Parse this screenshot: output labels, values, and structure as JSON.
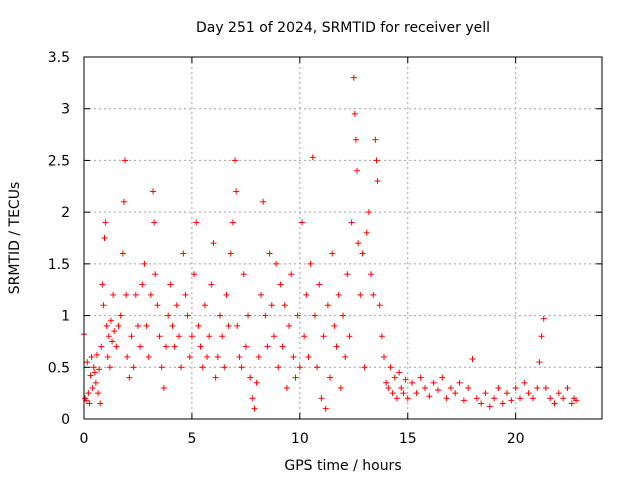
{
  "chart_data": {
    "type": "scatter",
    "title": "Day 251 of 2024, SRMTID for receiver yell",
    "xlabel": "GPS time / hours",
    "ylabel": "SRMTID / TECUs",
    "xlim": [
      0,
      24
    ],
    "ylim": [
      0,
      3.5
    ],
    "grid": true,
    "marker": "+",
    "color": "#ff0000",
    "x_ticks": [
      0,
      5,
      10,
      15,
      20
    ],
    "x_tick_labels": [
      "0",
      "5",
      "10",
      "15",
      "20"
    ],
    "y_ticks": [
      0,
      0.5,
      1,
      1.5,
      2,
      2.5,
      3,
      3.5
    ],
    "y_tick_labels": [
      "0",
      "0.5",
      "1",
      "1.5",
      "2",
      "2.5",
      "3",
      "3.5"
    ],
    "series": [
      {
        "name": "SRMTID",
        "points": [
          [
            0.0,
            0.82
          ],
          [
            0.05,
            0.2
          ],
          [
            0.1,
            0.18
          ],
          [
            0.15,
            0.55
          ],
          [
            0.2,
            0.25
          ],
          [
            0.25,
            0.15
          ],
          [
            0.3,
            0.42
          ],
          [
            0.35,
            0.6
          ],
          [
            0.4,
            0.3
          ],
          [
            0.45,
            0.5
          ],
          [
            0.5,
            0.45
          ],
          [
            0.55,
            0.35
          ],
          [
            0.6,
            0.62
          ],
          [
            0.65,
            0.25
          ],
          [
            0.7,
            0.48
          ],
          [
            0.75,
            0.15
          ],
          [
            0.8,
            0.7
          ],
          [
            0.85,
            1.3
          ],
          [
            0.9,
            1.1
          ],
          [
            0.95,
            1.75
          ],
          [
            1.0,
            1.9
          ],
          [
            1.05,
            0.9
          ],
          [
            1.1,
            0.6
          ],
          [
            1.15,
            0.8
          ],
          [
            1.2,
            0.5
          ],
          [
            1.25,
            0.95
          ],
          [
            1.3,
            0.75
          ],
          [
            1.35,
            1.2
          ],
          [
            1.4,
            0.85
          ],
          [
            1.5,
            0.7
          ],
          [
            1.6,
            0.9
          ],
          [
            1.7,
            1.0
          ],
          [
            1.8,
            1.6
          ],
          [
            1.85,
            2.1
          ],
          [
            1.9,
            2.5
          ],
          [
            1.95,
            1.2
          ],
          [
            2.0,
            0.6
          ],
          [
            2.1,
            0.4
          ],
          [
            2.2,
            0.8
          ],
          [
            2.3,
            0.5
          ],
          [
            2.4,
            1.2
          ],
          [
            2.5,
            0.9
          ],
          [
            2.6,
            0.7
          ],
          [
            2.7,
            1.3
          ],
          [
            2.8,
            1.5
          ],
          [
            2.9,
            0.9
          ],
          [
            3.0,
            0.6
          ],
          [
            3.1,
            1.2
          ],
          [
            3.2,
            2.2
          ],
          [
            3.25,
            1.9
          ],
          [
            3.3,
            1.4
          ],
          [
            3.4,
            1.1
          ],
          [
            3.5,
            0.8
          ],
          [
            3.6,
            0.5
          ],
          [
            3.7,
            0.3
          ],
          [
            3.8,
            0.7
          ],
          [
            3.9,
            1.0
          ],
          [
            4.0,
            1.3
          ],
          [
            4.1,
            0.9
          ],
          [
            4.2,
            0.7
          ],
          [
            4.3,
            1.1
          ],
          [
            4.4,
            0.8
          ],
          [
            4.5,
            0.5
          ],
          [
            4.6,
            1.6
          ],
          [
            4.7,
            1.2
          ],
          [
            4.8,
            1.0
          ],
          [
            4.9,
            0.6
          ],
          [
            5.0,
            0.8
          ],
          [
            5.1,
            1.4
          ],
          [
            5.2,
            1.9
          ],
          [
            5.3,
            0.9
          ],
          [
            5.4,
            0.7
          ],
          [
            5.5,
            0.5
          ],
          [
            5.6,
            1.1
          ],
          [
            5.7,
            0.6
          ],
          [
            5.8,
            0.8
          ],
          [
            5.9,
            1.3
          ],
          [
            6.0,
            1.7
          ],
          [
            6.1,
            0.4
          ],
          [
            6.2,
            0.6
          ],
          [
            6.3,
            1.0
          ],
          [
            6.4,
            0.8
          ],
          [
            6.5,
            0.5
          ],
          [
            6.6,
            1.2
          ],
          [
            6.7,
            0.9
          ],
          [
            6.8,
            1.6
          ],
          [
            6.9,
            1.9
          ],
          [
            7.0,
            2.5
          ],
          [
            7.05,
            2.2
          ],
          [
            7.1,
            0.9
          ],
          [
            7.2,
            0.6
          ],
          [
            7.3,
            0.5
          ],
          [
            7.4,
            1.4
          ],
          [
            7.5,
            0.7
          ],
          [
            7.6,
            1.0
          ],
          [
            7.7,
            0.4
          ],
          [
            7.8,
            0.2
          ],
          [
            7.9,
            0.1
          ],
          [
            8.0,
            0.35
          ],
          [
            8.1,
            0.6
          ],
          [
            8.2,
            1.2
          ],
          [
            8.3,
            2.1
          ],
          [
            8.4,
            1.0
          ],
          [
            8.5,
            0.7
          ],
          [
            8.6,
            1.6
          ],
          [
            8.7,
            1.1
          ],
          [
            8.8,
            0.8
          ],
          [
            8.9,
            1.5
          ],
          [
            9.0,
            0.5
          ],
          [
            9.1,
            1.3
          ],
          [
            9.2,
            0.7
          ],
          [
            9.3,
            1.1
          ],
          [
            9.4,
            0.3
          ],
          [
            9.5,
            0.9
          ],
          [
            9.6,
            1.4
          ],
          [
            9.7,
            0.6
          ],
          [
            9.8,
            0.4
          ],
          [
            9.9,
            1.0
          ],
          [
            10.0,
            0.5
          ],
          [
            10.1,
            1.9
          ],
          [
            10.2,
            0.8
          ],
          [
            10.3,
            1.2
          ],
          [
            10.4,
            0.6
          ],
          [
            10.5,
            1.5
          ],
          [
            10.6,
            2.53
          ],
          [
            10.7,
            1.0
          ],
          [
            10.8,
            0.5
          ],
          [
            10.9,
            1.3
          ],
          [
            11.0,
            0.2
          ],
          [
            11.1,
            0.8
          ],
          [
            11.2,
            0.1
          ],
          [
            11.3,
            1.1
          ],
          [
            11.4,
            0.4
          ],
          [
            11.5,
            1.6
          ],
          [
            11.6,
            0.9
          ],
          [
            11.7,
            0.7
          ],
          [
            11.8,
            1.2
          ],
          [
            11.9,
            0.3
          ],
          [
            12.0,
            1.0
          ],
          [
            12.1,
            0.6
          ],
          [
            12.2,
            1.4
          ],
          [
            12.3,
            0.8
          ],
          [
            12.4,
            1.9
          ],
          [
            12.5,
            3.3
          ],
          [
            12.55,
            2.95
          ],
          [
            12.6,
            2.7
          ],
          [
            12.65,
            2.4
          ],
          [
            12.7,
            1.7
          ],
          [
            12.8,
            1.2
          ],
          [
            12.9,
            1.6
          ],
          [
            13.0,
            0.5
          ],
          [
            13.1,
            1.8
          ],
          [
            13.2,
            2.0
          ],
          [
            13.3,
            1.4
          ],
          [
            13.4,
            1.2
          ],
          [
            13.5,
            2.7
          ],
          [
            13.55,
            2.5
          ],
          [
            13.6,
            2.3
          ],
          [
            13.7,
            1.1
          ],
          [
            13.8,
            0.8
          ],
          [
            13.9,
            0.6
          ],
          [
            14.0,
            0.35
          ],
          [
            14.1,
            0.3
          ],
          [
            14.2,
            0.5
          ],
          [
            14.3,
            0.25
          ],
          [
            14.4,
            0.4
          ],
          [
            14.5,
            0.2
          ],
          [
            14.6,
            0.45
          ],
          [
            14.7,
            0.3
          ],
          [
            14.8,
            0.25
          ],
          [
            14.9,
            0.38
          ],
          [
            15.0,
            0.2
          ],
          [
            15.2,
            0.35
          ],
          [
            15.4,
            0.25
          ],
          [
            15.6,
            0.4
          ],
          [
            15.8,
            0.3
          ],
          [
            16.0,
            0.22
          ],
          [
            16.2,
            0.35
          ],
          [
            16.4,
            0.28
          ],
          [
            16.6,
            0.4
          ],
          [
            16.8,
            0.2
          ],
          [
            17.0,
            0.3
          ],
          [
            17.2,
            0.25
          ],
          [
            17.4,
            0.35
          ],
          [
            17.6,
            0.18
          ],
          [
            17.8,
            0.3
          ],
          [
            18.0,
            0.58
          ],
          [
            18.2,
            0.2
          ],
          [
            18.4,
            0.15
          ],
          [
            18.6,
            0.25
          ],
          [
            18.8,
            0.12
          ],
          [
            19.0,
            0.2
          ],
          [
            19.2,
            0.3
          ],
          [
            19.4,
            0.15
          ],
          [
            19.6,
            0.25
          ],
          [
            19.8,
            0.18
          ],
          [
            20.0,
            0.3
          ],
          [
            20.2,
            0.2
          ],
          [
            20.4,
            0.35
          ],
          [
            20.6,
            0.25
          ],
          [
            20.8,
            0.2
          ],
          [
            21.0,
            0.3
          ],
          [
            21.1,
            0.55
          ],
          [
            21.2,
            0.8
          ],
          [
            21.3,
            0.97
          ],
          [
            21.4,
            0.3
          ],
          [
            21.6,
            0.2
          ],
          [
            21.8,
            0.15
          ],
          [
            22.0,
            0.25
          ],
          [
            22.2,
            0.2
          ],
          [
            22.4,
            0.3
          ],
          [
            22.6,
            0.15
          ],
          [
            22.7,
            0.2
          ],
          [
            22.8,
            0.18
          ]
        ]
      }
    ]
  }
}
